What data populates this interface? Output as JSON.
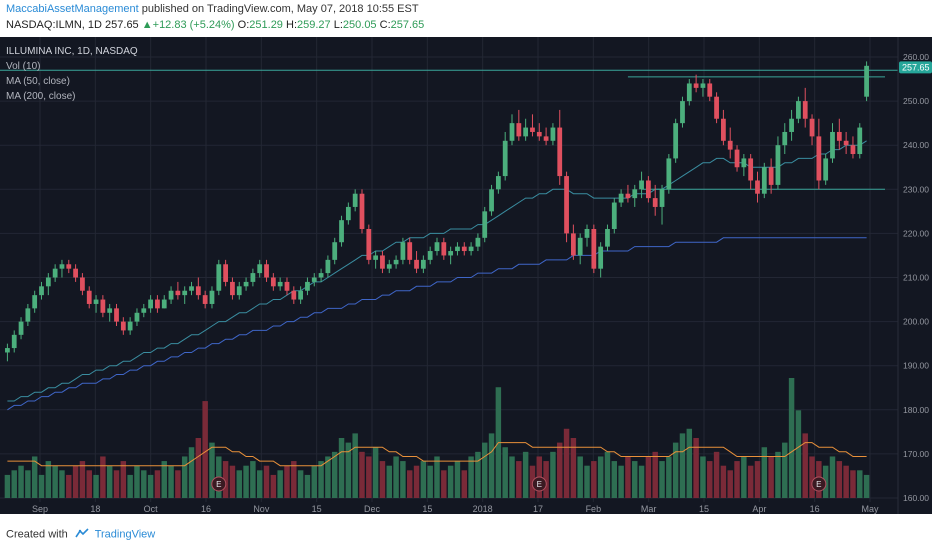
{
  "header": {
    "author": "MaccabiAssetManagement",
    "published_text": "published on TradingView.com, May 07, 2018 10:55 EST",
    "symbol": "NASDAQ:ILMN, 1D",
    "last": "257.65",
    "change": "+12.83 (+5.24%)",
    "o_label": "O:",
    "o_value": "251.29",
    "h_label": "H:",
    "h_value": "259.27",
    "l_label": "L:",
    "l_value": "250.05",
    "c_label": "C:",
    "c_value": "257.65"
  },
  "legend": {
    "title": "ILLUMINA INC, 1D, NASDAQ",
    "vol": "Vol (10)",
    "ma50": "MA (50, close)",
    "ma200": "MA (200, close)"
  },
  "price_badge": "257.65",
  "footer": {
    "created_with": "Created with",
    "brand": "TradingView"
  },
  "colors": {
    "up": "#4caf7d",
    "down": "#e0505f",
    "vol_up": "#2e6e52",
    "vol_down": "#7a2a38",
    "ma50": "#3a8da0",
    "ma200": "#3f66c8",
    "vol_ma": "#e8903a",
    "hline": "#3aa59a",
    "badge": "#26a69a"
  },
  "chart_data": {
    "type": "candlestick",
    "symbol": "ILMN",
    "y_axis": {
      "min": 160,
      "max": 260,
      "ticks": [
        "160.00",
        "170.00",
        "180.00",
        "190.00",
        "200.00",
        "210.00",
        "220.00",
        "230.00",
        "240.00",
        "250.00",
        "260.00"
      ]
    },
    "x_ticks": [
      "Sep",
      "18",
      "Oct",
      "16",
      "Nov",
      "15",
      "Dec",
      "15",
      "2018",
      "17",
      "Feb",
      "Mar",
      "15",
      "Apr",
      "16",
      "May"
    ],
    "earnings_markers": [
      "E",
      "E",
      "E"
    ],
    "horizontal_lines": [
      257,
      255.5,
      230
    ],
    "series": [
      {
        "name": "Price",
        "values": [
          [
            193,
            195,
            191,
            194
          ],
          [
            194,
            198,
            193,
            197
          ],
          [
            197,
            201,
            196,
            200
          ],
          [
            200,
            204,
            199,
            203
          ],
          [
            203,
            207,
            202,
            206
          ],
          [
            206,
            209,
            205,
            208
          ],
          [
            208,
            211,
            206,
            210
          ],
          [
            210,
            213,
            209,
            212
          ],
          [
            212,
            214,
            210,
            213
          ],
          [
            213,
            214,
            211,
            212
          ],
          [
            212,
            213,
            209,
            210
          ],
          [
            210,
            211,
            206,
            207
          ],
          [
            207,
            208,
            203,
            204
          ],
          [
            204,
            206,
            202,
            205
          ],
          [
            205,
            206,
            201,
            202
          ],
          [
            202,
            204,
            200,
            203
          ],
          [
            203,
            204,
            199,
            200
          ],
          [
            200,
            201,
            197,
            198
          ],
          [
            198,
            201,
            197,
            200
          ],
          [
            200,
            203,
            199,
            202
          ],
          [
            202,
            204,
            201,
            203
          ],
          [
            203,
            206,
            202,
            205
          ],
          [
            205,
            206,
            202,
            203
          ],
          [
            203,
            206,
            203,
            205
          ],
          [
            205,
            208,
            204,
            207
          ],
          [
            207,
            209,
            205,
            206
          ],
          [
            206,
            208,
            204,
            207
          ],
          [
            207,
            209,
            206,
            208
          ],
          [
            208,
            210,
            205,
            206
          ],
          [
            206,
            207,
            203,
            204
          ],
          [
            204,
            208,
            203,
            207
          ],
          [
            207,
            214,
            206,
            213
          ],
          [
            213,
            214,
            208,
            209
          ],
          [
            209,
            210,
            205,
            206
          ],
          [
            206,
            209,
            205,
            208
          ],
          [
            208,
            210,
            207,
            209
          ],
          [
            209,
            212,
            208,
            211
          ],
          [
            211,
            214,
            210,
            213
          ],
          [
            213,
            214,
            209,
            210
          ],
          [
            210,
            211,
            207,
            208
          ],
          [
            208,
            210,
            207,
            209
          ],
          [
            209,
            210,
            206,
            207
          ],
          [
            207,
            208,
            204,
            205
          ],
          [
            205,
            208,
            204,
            207
          ],
          [
            207,
            210,
            206,
            209
          ],
          [
            209,
            211,
            208,
            210
          ],
          [
            210,
            212,
            209,
            211
          ],
          [
            211,
            215,
            210,
            214
          ],
          [
            214,
            219,
            213,
            218
          ],
          [
            218,
            224,
            217,
            223
          ],
          [
            223,
            227,
            222,
            226
          ],
          [
            226,
            230,
            225,
            229
          ],
          [
            229,
            230,
            220,
            221
          ],
          [
            221,
            222,
            213,
            214
          ],
          [
            214,
            216,
            212,
            215
          ],
          [
            215,
            216,
            211,
            212
          ],
          [
            212,
            214,
            211,
            213
          ],
          [
            213,
            215,
            212,
            214
          ],
          [
            214,
            219,
            213,
            218
          ],
          [
            218,
            219,
            213,
            214
          ],
          [
            214,
            216,
            211,
            212
          ],
          [
            212,
            215,
            211,
            214
          ],
          [
            214,
            217,
            213,
            216
          ],
          [
            216,
            219,
            215,
            218
          ],
          [
            218,
            219,
            214,
            215
          ],
          [
            215,
            217,
            213,
            216
          ],
          [
            216,
            218,
            215,
            217
          ],
          [
            217,
            218,
            215,
            216
          ],
          [
            216,
            218,
            215,
            217
          ],
          [
            217,
            220,
            216,
            219
          ],
          [
            219,
            226,
            218,
            225
          ],
          [
            225,
            231,
            224,
            230
          ],
          [
            230,
            234,
            229,
            233
          ],
          [
            233,
            243,
            232,
            241
          ],
          [
            241,
            247,
            240,
            245
          ],
          [
            245,
            248,
            241,
            242
          ],
          [
            242,
            246,
            241,
            244
          ],
          [
            244,
            247,
            242,
            243
          ],
          [
            243,
            245,
            241,
            242
          ],
          [
            242,
            244,
            240,
            241
          ],
          [
            241,
            245,
            240,
            244
          ],
          [
            244,
            248,
            231,
            233
          ],
          [
            233,
            234,
            218,
            220
          ],
          [
            220,
            222,
            214,
            215
          ],
          [
            215,
            220,
            213,
            219
          ],
          [
            219,
            222,
            217,
            221
          ],
          [
            221,
            222,
            211,
            212
          ],
          [
            212,
            218,
            210,
            217
          ],
          [
            217,
            222,
            216,
            221
          ],
          [
            221,
            228,
            220,
            227
          ],
          [
            227,
            230,
            226,
            229
          ],
          [
            229,
            231,
            227,
            228
          ],
          [
            228,
            231,
            226,
            230
          ],
          [
            230,
            234,
            228,
            232
          ],
          [
            232,
            233,
            227,
            228
          ],
          [
            228,
            231,
            224,
            226
          ],
          [
            226,
            231,
            222,
            230
          ],
          [
            230,
            238,
            229,
            237
          ],
          [
            237,
            246,
            236,
            245
          ],
          [
            245,
            251,
            244,
            250
          ],
          [
            250,
            255,
            249,
            254
          ],
          [
            254,
            256,
            252,
            253
          ],
          [
            253,
            255,
            251,
            254
          ],
          [
            254,
            255,
            250,
            251
          ],
          [
            251,
            252,
            245,
            246
          ],
          [
            246,
            248,
            240,
            241
          ],
          [
            241,
            244,
            237,
            239
          ],
          [
            239,
            240,
            234,
            235
          ],
          [
            235,
            238,
            233,
            237
          ],
          [
            237,
            238,
            230,
            232
          ],
          [
            232,
            234,
            227,
            229
          ],
          [
            229,
            236,
            228,
            235
          ],
          [
            235,
            237,
            229,
            231
          ],
          [
            231,
            242,
            230,
            240
          ],
          [
            240,
            245,
            238,
            243
          ],
          [
            243,
            248,
            241,
            246
          ],
          [
            246,
            251,
            245,
            250
          ],
          [
            250,
            253,
            244,
            246
          ],
          [
            246,
            247,
            240,
            242
          ],
          [
            242,
            246,
            230,
            232
          ],
          [
            232,
            238,
            231,
            237
          ],
          [
            237,
            245,
            236,
            243
          ],
          [
            243,
            246,
            239,
            241
          ],
          [
            241,
            243,
            238,
            240
          ],
          [
            240,
            242,
            237,
            238
          ],
          [
            238,
            245,
            237,
            244
          ],
          [
            251,
            259,
            250,
            258
          ]
        ]
      }
    ],
    "ma50": [
      182,
      182,
      183,
      183,
      184,
      184,
      185,
      185,
      186,
      186,
      187,
      188,
      188,
      189,
      189,
      190,
      190,
      191,
      191,
      192,
      193,
      193,
      194,
      194,
      195,
      195,
      196,
      197,
      197,
      198,
      199,
      200,
      200,
      201,
      202,
      202,
      203,
      204,
      204,
      205,
      205,
      206,
      207,
      207,
      208,
      209,
      209,
      210,
      211,
      212,
      213,
      214,
      215,
      215,
      216,
      216,
      217,
      218,
      218,
      219,
      219,
      219,
      220,
      220,
      220,
      221,
      221,
      221,
      221,
      222,
      222,
      223,
      224,
      225,
      226,
      227,
      228,
      228,
      229,
      229,
      230,
      230,
      230,
      229,
      229,
      229,
      228,
      228,
      228,
      228,
      228,
      228,
      229,
      229,
      229,
      230,
      230,
      231,
      232,
      233,
      234,
      235,
      236,
      236,
      237,
      237,
      236,
      236,
      236,
      235,
      235,
      235,
      235,
      235,
      236,
      236,
      237,
      237,
      237,
      238,
      238,
      239,
      239,
      240,
      240,
      240,
      241
    ],
    "ma200": [
      180,
      181,
      181,
      182,
      182,
      183,
      183,
      184,
      184,
      185,
      185,
      186,
      186,
      186,
      187,
      187,
      188,
      188,
      189,
      189,
      190,
      190,
      191,
      191,
      192,
      192,
      193,
      193,
      194,
      194,
      195,
      195,
      196,
      196,
      197,
      197,
      198,
      198,
      198,
      199,
      199,
      200,
      200,
      201,
      201,
      202,
      202,
      203,
      203,
      203,
      204,
      204,
      205,
      205,
      205,
      206,
      206,
      207,
      207,
      207,
      208,
      208,
      208,
      209,
      209,
      209,
      210,
      210,
      210,
      211,
      211,
      211,
      212,
      212,
      212,
      213,
      213,
      213,
      213,
      214,
      214,
      214,
      214,
      215,
      215,
      215,
      215,
      216,
      216,
      216,
      216,
      216,
      217,
      217,
      217,
      217,
      217,
      217,
      218,
      218,
      218,
      218,
      218,
      218,
      218,
      219,
      219,
      219,
      219,
      219,
      219,
      219,
      219,
      219,
      219,
      219,
      219,
      219,
      219,
      219,
      219,
      219,
      219,
      219,
      219,
      219,
      219
    ],
    "volume": [
      5,
      6,
      7,
      6,
      9,
      5,
      8,
      7,
      6,
      5,
      7,
      8,
      6,
      5,
      9,
      7,
      6,
      8,
      5,
      7,
      6,
      5,
      6,
      8,
      7,
      6,
      9,
      11,
      13,
      21,
      12,
      9,
      8,
      7,
      6,
      7,
      8,
      6,
      7,
      5,
      6,
      7,
      8,
      6,
      5,
      7,
      8,
      9,
      10,
      13,
      12,
      14,
      10,
      9,
      11,
      8,
      7,
      9,
      8,
      6,
      7,
      8,
      7,
      9,
      6,
      7,
      8,
      6,
      9,
      10,
      12,
      14,
      24,
      11,
      9,
      8,
      10,
      7,
      9,
      8,
      10,
      12,
      15,
      13,
      9,
      7,
      8,
      9,
      10,
      8,
      7,
      9,
      8,
      7,
      9,
      10,
      8,
      9,
      12,
      14,
      15,
      13,
      9,
      8,
      10,
      7,
      6,
      8,
      9,
      7,
      8,
      11,
      9,
      10,
      12,
      26,
      19,
      14,
      9,
      8,
      7,
      9,
      8,
      7,
      6,
      6,
      5
    ],
    "vol_ma": [
      8,
      8,
      8,
      8,
      8,
      7,
      7,
      7,
      7,
      7,
      7,
      7,
      7,
      7,
      7,
      7,
      7,
      7,
      7,
      7,
      7,
      7,
      7,
      7,
      7,
      7,
      7,
      8,
      9,
      10,
      11,
      11,
      11,
      10,
      10,
      9,
      9,
      8,
      8,
      8,
      7,
      7,
      7,
      7,
      7,
      7,
      7,
      8,
      9,
      10,
      10,
      11,
      11,
      11,
      11,
      11,
      10,
      10,
      9,
      9,
      9,
      8,
      8,
      8,
      8,
      8,
      8,
      8,
      8,
      8,
      9,
      10,
      12,
      12,
      12,
      12,
      12,
      11,
      11,
      11,
      11,
      11,
      11,
      11,
      11,
      11,
      11,
      11,
      10,
      10,
      9,
      9,
      9,
      9,
      9,
      9,
      9,
      9,
      10,
      10,
      11,
      11,
      11,
      11,
      11,
      11,
      10,
      9,
      9,
      9,
      9,
      9,
      9,
      9,
      9,
      10,
      11,
      12,
      12,
      11,
      11,
      11,
      10,
      10,
      9,
      9,
      9
    ]
  }
}
